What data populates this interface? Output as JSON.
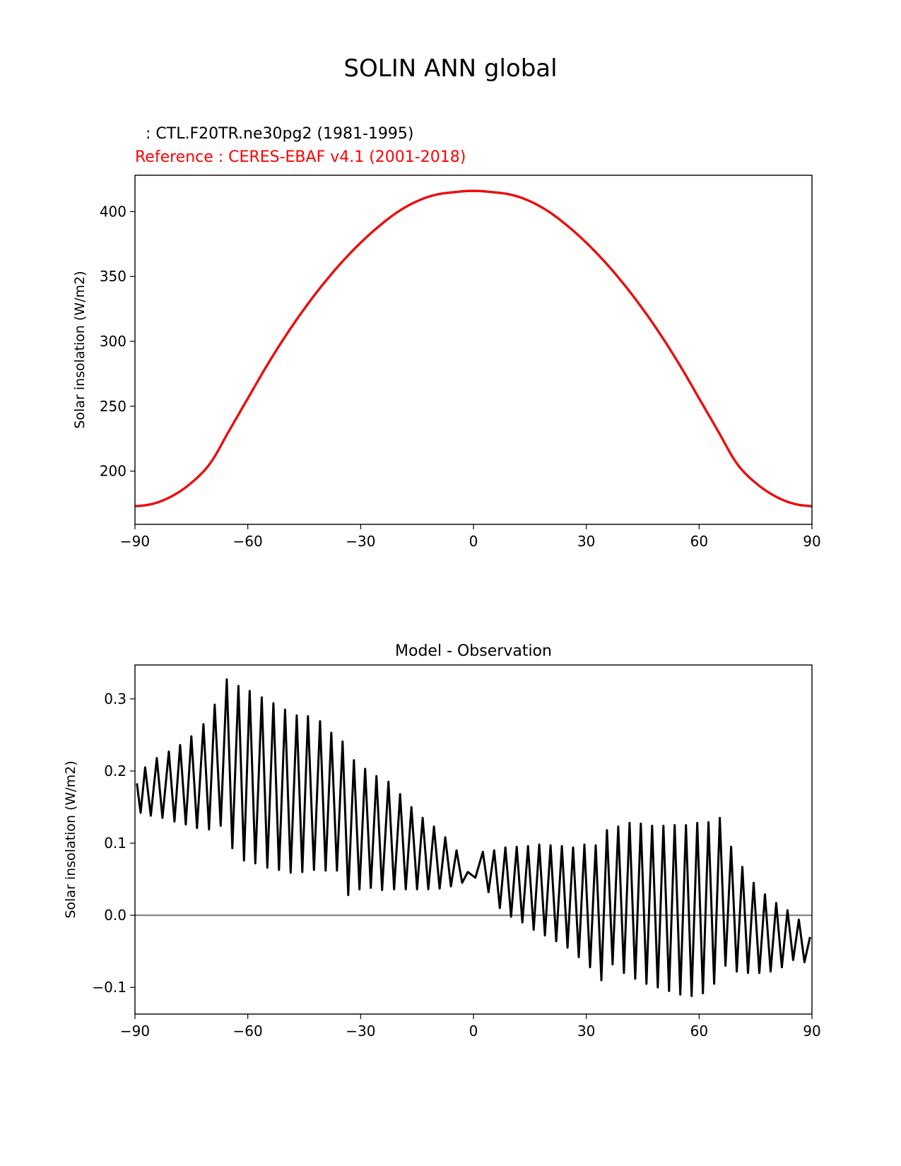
{
  "figure": {
    "suptitle": "SOLIN ANN global"
  },
  "chart_data": [
    {
      "type": "line",
      "test_label": ": CTL.F20TR.ne30pg2 (1981-1995)",
      "ref_label": "Reference : CERES-EBAF v4.1 (2001-2018)",
      "ref_color": "#ff0000",
      "test_color": "#000000",
      "ylabel": "Solar insolation (W/m2)",
      "xlim": [
        -90,
        90
      ],
      "ylim": [
        159,
        428
      ],
      "xticks": [
        -90,
        -60,
        -30,
        0,
        30,
        60,
        90
      ],
      "xtick_labels": [
        "−90",
        "−60",
        "−30",
        "0",
        "30",
        "60",
        "90"
      ],
      "yticks": [
        200,
        250,
        300,
        350,
        400
      ],
      "ytick_labels": [
        "200",
        "250",
        "300",
        "350",
        "400"
      ],
      "series": [
        {
          "name": "Reference",
          "x": [
            -90,
            -85,
            -80,
            -75,
            -70,
            -65,
            -60,
            -55,
            -50,
            -45,
            -40,
            -35,
            -30,
            -25,
            -20,
            -15,
            -10,
            -5,
            0,
            5,
            10,
            15,
            20,
            25,
            30,
            35,
            40,
            45,
            50,
            55,
            60,
            65,
            70,
            75,
            80,
            85,
            90
          ],
          "y": [
            173,
            175,
            181,
            191,
            206,
            231,
            256,
            281,
            304,
            325,
            344,
            361,
            376,
            389,
            400,
            408,
            413,
            415,
            416,
            415,
            413,
            408,
            400,
            389,
            376,
            361,
            344,
            325,
            304,
            281,
            256,
            231,
            206,
            191,
            181,
            175,
            173
          ]
        }
      ]
    },
    {
      "type": "line",
      "title": "Model - Observation",
      "ylabel": "Solar insolation (W/m2)",
      "line_color": "#000000",
      "zero_line_color": "#808080",
      "xlim": [
        -90,
        90
      ],
      "ylim": [
        -0.137,
        0.347
      ],
      "xticks": [
        -90,
        -60,
        -30,
        0,
        30,
        60,
        90
      ],
      "xtick_labels": [
        "−90",
        "−60",
        "−30",
        "0",
        "30",
        "60",
        "90"
      ],
      "yticks": [
        -0.1,
        0.0,
        0.1,
        0.2,
        0.3
      ],
      "ytick_labels": [
        "−0.1",
        "0.0",
        "0.1",
        "0.2",
        "0.3"
      ],
      "peak_envelope": [
        [
          -89.5,
          0.183
        ],
        [
          -87.3,
          0.205
        ],
        [
          -84.2,
          0.218
        ],
        [
          -81.0,
          0.227
        ],
        [
          -78.0,
          0.236
        ],
        [
          -75.0,
          0.248
        ],
        [
          -71.8,
          0.265
        ],
        [
          -68.8,
          0.292
        ],
        [
          -65.6,
          0.327
        ],
        [
          -62.5,
          0.318
        ],
        [
          -59.5,
          0.311
        ],
        [
          -56.3,
          0.302
        ],
        [
          -53.2,
          0.294
        ],
        [
          -50.1,
          0.285
        ],
        [
          -47.0,
          0.277
        ],
        [
          -44.0,
          0.276
        ],
        [
          -40.8,
          0.269
        ],
        [
          -37.8,
          0.253
        ],
        [
          -34.8,
          0.241
        ],
        [
          -31.8,
          0.215
        ],
        [
          -28.8,
          0.203
        ],
        [
          -25.8,
          0.193
        ],
        [
          -22.6,
          0.185
        ],
        [
          -19.5,
          0.168
        ],
        [
          -16.5,
          0.15
        ],
        [
          -13.5,
          0.135
        ],
        [
          -10.5,
          0.123
        ],
        [
          -7.5,
          0.108
        ],
        [
          -4.5,
          0.09
        ],
        [
          -1.5,
          0.06
        ],
        [
          2.5,
          0.088
        ],
        [
          5.5,
          0.09
        ],
        [
          8.5,
          0.094
        ],
        [
          11.5,
          0.095
        ],
        [
          14.5,
          0.096
        ],
        [
          17.5,
          0.098
        ],
        [
          20.5,
          0.097
        ],
        [
          23.5,
          0.096
        ],
        [
          26.5,
          0.094
        ],
        [
          29.5,
          0.098
        ],
        [
          32.5,
          0.097
        ],
        [
          35.5,
          0.118
        ],
        [
          38.5,
          0.123
        ],
        [
          41.5,
          0.128
        ],
        [
          44.5,
          0.127
        ],
        [
          47.5,
          0.124
        ],
        [
          50.5,
          0.124
        ],
        [
          53.5,
          0.125
        ],
        [
          56.5,
          0.125
        ],
        [
          59.5,
          0.128
        ],
        [
          62.5,
          0.129
        ],
        [
          65.5,
          0.135
        ],
        [
          68.5,
          0.095
        ],
        [
          71.5,
          0.067
        ],
        [
          74.5,
          0.045
        ],
        [
          77.5,
          0.029
        ],
        [
          80.5,
          0.017
        ],
        [
          83.5,
          0.007
        ],
        [
          86.5,
          -0.006
        ],
        [
          89.5,
          -0.03
        ]
      ],
      "trough_envelope": [
        [
          -88.5,
          0.142
        ],
        [
          -85.8,
          0.138
        ],
        [
          -82.7,
          0.135
        ],
        [
          -79.5,
          0.13
        ],
        [
          -76.5,
          0.126
        ],
        [
          -73.5,
          0.121
        ],
        [
          -70.3,
          0.119
        ],
        [
          -67.2,
          0.124
        ],
        [
          -64.1,
          0.093
        ],
        [
          -61.0,
          0.076
        ],
        [
          -58.0,
          0.072
        ],
        [
          -54.8,
          0.066
        ],
        [
          -51.7,
          0.063
        ],
        [
          -48.6,
          0.059
        ],
        [
          -45.5,
          0.06
        ],
        [
          -42.4,
          0.063
        ],
        [
          -39.3,
          0.062
        ],
        [
          -36.3,
          0.062
        ],
        [
          -33.3,
          0.028
        ],
        [
          -30.3,
          0.036
        ],
        [
          -27.3,
          0.038
        ],
        [
          -24.3,
          0.035
        ],
        [
          -21.1,
          0.036
        ],
        [
          -18.0,
          0.036
        ],
        [
          -15.0,
          0.036
        ],
        [
          -12.0,
          0.036
        ],
        [
          -9.0,
          0.037
        ],
        [
          -6.0,
          0.04
        ],
        [
          -3.0,
          0.045
        ],
        [
          0.5,
          0.052
        ],
        [
          4.0,
          0.032
        ],
        [
          7.0,
          0.01
        ],
        [
          10.0,
          -0.002
        ],
        [
          13.0,
          -0.01
        ],
        [
          16.0,
          -0.02
        ],
        [
          19.0,
          -0.028
        ],
        [
          22.0,
          -0.036
        ],
        [
          25.0,
          -0.045
        ],
        [
          28.0,
          -0.058
        ],
        [
          31.0,
          -0.072
        ],
        [
          34.0,
          -0.09
        ],
        [
          37.0,
          -0.068
        ],
        [
          40.0,
          -0.08
        ],
        [
          43.0,
          -0.088
        ],
        [
          46.0,
          -0.095
        ],
        [
          49.0,
          -0.1
        ],
        [
          52.0,
          -0.105
        ],
        [
          55.0,
          -0.11
        ],
        [
          58.0,
          -0.112
        ],
        [
          61.0,
          -0.108
        ],
        [
          64.0,
          -0.095
        ],
        [
          67.0,
          -0.07
        ],
        [
          70.0,
          -0.078
        ],
        [
          73.0,
          -0.08
        ],
        [
          76.0,
          -0.08
        ],
        [
          79.0,
          -0.078
        ],
        [
          82.0,
          -0.072
        ],
        [
          85.0,
          -0.062
        ],
        [
          88.0,
          -0.065
        ]
      ]
    }
  ]
}
